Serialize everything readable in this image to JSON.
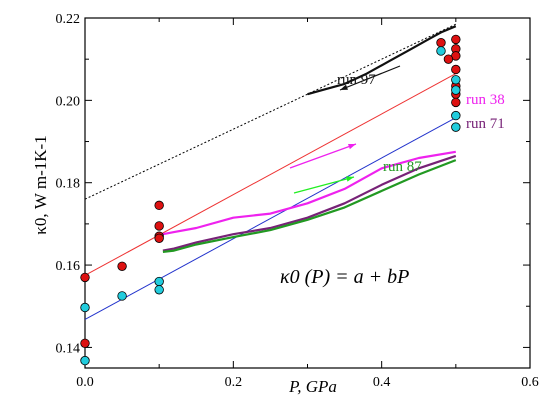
{
  "chart_data": {
    "type": "scatter",
    "xlabel": "P, GPa",
    "ylabel": "κ0, W m-1K-1",
    "xlim": [
      0.0,
      0.6
    ],
    "ylim": [
      0.135,
      0.22
    ],
    "x_ticks": [
      "0.0",
      "0.2",
      "0.4",
      "0.6"
    ],
    "y_ticks": [
      "0.14",
      "0.16",
      "0.18",
      "0.20",
      "0.22"
    ],
    "grid": false,
    "equation": "κ0 (P) = a + bP",
    "point_series": [
      {
        "color": "#dd1111",
        "points": [
          [
            0.0,
            0.157
          ],
          [
            0.0,
            0.141
          ],
          [
            0.05,
            0.1597
          ],
          [
            0.1,
            0.1745
          ],
          [
            0.1,
            0.1695
          ],
          [
            0.1,
            0.167
          ],
          [
            0.1,
            0.1665
          ],
          [
            0.48,
            0.214
          ],
          [
            0.5,
            0.2148
          ],
          [
            0.5,
            0.2125
          ],
          [
            0.5,
            0.2108
          ],
          [
            0.49,
            0.21
          ],
          [
            0.5,
            0.2075
          ],
          [
            0.5,
            0.2035
          ],
          [
            0.5,
            0.2015
          ],
          [
            0.5,
            0.1995
          ]
        ]
      },
      {
        "color": "#22ccdd",
        "points": [
          [
            0.0,
            0.1497
          ],
          [
            0.0,
            0.1368
          ],
          [
            0.05,
            0.1525
          ],
          [
            0.1,
            0.156
          ],
          [
            0.1,
            0.154
          ],
          [
            0.48,
            0.212
          ],
          [
            0.5,
            0.205
          ],
          [
            0.5,
            0.2025
          ],
          [
            0.5,
            0.1963
          ],
          [
            0.5,
            0.1935
          ]
        ]
      }
    ],
    "fit_lines": [
      {
        "color": "#ee3333",
        "style": "solid",
        "x": [
          0.0,
          0.5
        ],
        "y": [
          0.1575,
          0.2065
        ]
      },
      {
        "color": "#2233cc",
        "style": "solid",
        "x": [
          0.0,
          0.5
        ],
        "y": [
          0.1468,
          0.1958
        ]
      },
      {
        "color": "#000000",
        "style": "dotted",
        "x": [
          0.0,
          0.5
        ],
        "y": [
          0.176,
          0.2185
        ]
      }
    ],
    "runs": [
      {
        "name": "run 97",
        "color": "#111111",
        "x": [
          0.3,
          0.32,
          0.35,
          0.38,
          0.41,
          0.44,
          0.46,
          0.48,
          0.5
        ],
        "y": [
          0.2015,
          0.2025,
          0.204,
          0.2065,
          0.2095,
          0.2125,
          0.2145,
          0.2165,
          0.218
        ]
      },
      {
        "name": "run 38",
        "color": "#ee22ee",
        "x": [
          0.1,
          0.105,
          0.12,
          0.15,
          0.2,
          0.25,
          0.3,
          0.35,
          0.4,
          0.45,
          0.5
        ],
        "y": [
          0.1655,
          0.1675,
          0.168,
          0.169,
          0.1715,
          0.1725,
          0.175,
          0.1785,
          0.1835,
          0.186,
          0.1875
        ]
      },
      {
        "name": "run 71",
        "color": "#772277",
        "x": [
          0.105,
          0.12,
          0.15,
          0.2,
          0.25,
          0.3,
          0.35,
          0.4,
          0.45,
          0.5
        ],
        "y": [
          0.1635,
          0.164,
          0.1655,
          0.1675,
          0.169,
          0.1715,
          0.175,
          0.1795,
          0.1835,
          0.1865
        ]
      },
      {
        "name": "run 87",
        "color": "#229922",
        "x": [
          0.105,
          0.12,
          0.15,
          0.2,
          0.25,
          0.3,
          0.35,
          0.4,
          0.45,
          0.5
        ],
        "y": [
          0.1632,
          0.1635,
          0.165,
          0.1668,
          0.1685,
          0.171,
          0.174,
          0.178,
          0.182,
          0.1855
        ]
      }
    ]
  }
}
